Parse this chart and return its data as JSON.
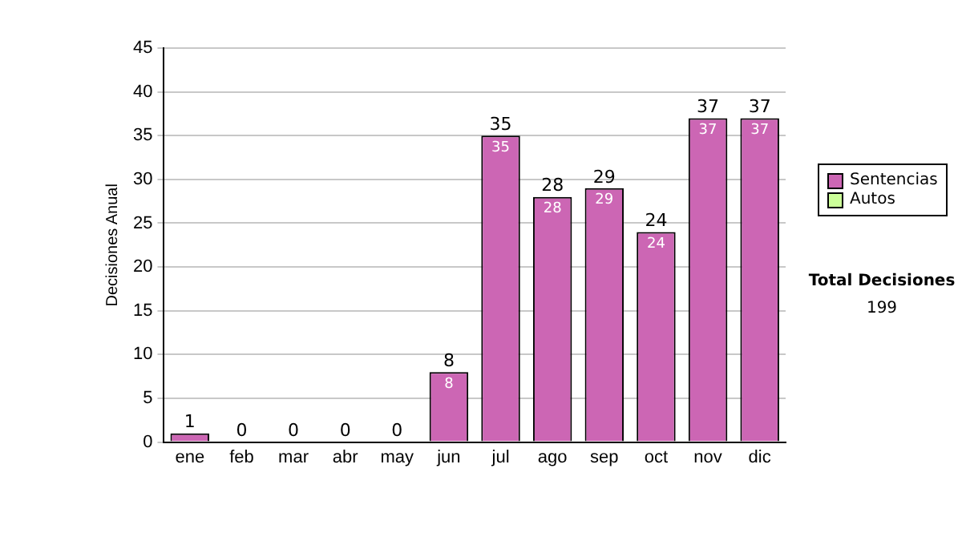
{
  "chart_data": {
    "type": "bar",
    "stacked": true,
    "ylabel": "Decisiones Anual",
    "categories": [
      "ene",
      "feb",
      "mar",
      "abr",
      "may",
      "jun",
      "jul",
      "ago",
      "sep",
      "oct",
      "nov",
      "dic"
    ],
    "series": [
      {
        "name": "Sentencias",
        "color": "#cc66b4",
        "values": [
          1,
          0,
          0,
          0,
          0,
          8,
          35,
          28,
          29,
          24,
          37,
          37
        ],
        "value_labels": [
          null,
          null,
          null,
          null,
          null,
          "8",
          "35",
          "28",
          "29",
          "24",
          "37",
          "37"
        ]
      },
      {
        "name": "Autos",
        "color": "#ccff99",
        "values": [
          0,
          0,
          0,
          0,
          0,
          0,
          0,
          0,
          0,
          0,
          0,
          0
        ]
      }
    ],
    "totals": [
      "1",
      "0",
      "0",
      "0",
      "0",
      "8",
      "35",
      "28",
      "29",
      "24",
      "37",
      "37"
    ],
    "ylim": [
      0,
      45
    ],
    "yticks": [
      0,
      5,
      10,
      15,
      20,
      25,
      30,
      35,
      40,
      45
    ],
    "grid": "y",
    "legend": "right",
    "annotations": [
      "Total Decisiones",
      "199"
    ]
  }
}
